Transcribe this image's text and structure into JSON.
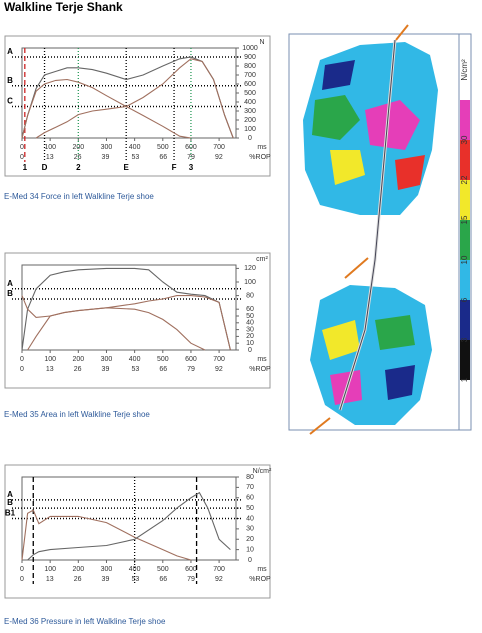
{
  "title": "Walkline Terje Shank",
  "chart_data": [
    {
      "type": "line",
      "title": "E-Med 34 Force in left Walkline Terje shoe",
      "y_unit": "N",
      "x_unit": "ms",
      "x2_unit": "%ROP",
      "xlim": [
        0,
        760
      ],
      "xticks": [
        0,
        100,
        200,
        300,
        400,
        500,
        600,
        700
      ],
      "x2lim": [
        0,
        100
      ],
      "x2ticks": [
        0,
        13,
        26,
        39,
        53,
        66,
        79,
        92
      ],
      "ylim": [
        0,
        1000
      ],
      "yticks": [
        0,
        100,
        200,
        300,
        400,
        500,
        600,
        700,
        800,
        900,
        1000
      ],
      "x": [
        0,
        20,
        50,
        80,
        120,
        160,
        200,
        250,
        300,
        370,
        430,
        500,
        560,
        600,
        640,
        680,
        720,
        750
      ],
      "series": [
        {
          "color": "#666666",
          "values": [
            0,
            250,
            550,
            700,
            740,
            780,
            780,
            760,
            720,
            650,
            700,
            800,
            880,
            900,
            850,
            650,
            250,
            0
          ]
        },
        {
          "color": "#a0705f",
          "values": [
            0,
            250,
            520,
            600,
            640,
            650,
            620,
            560,
            470,
            350,
            250,
            130,
            20,
            0,
            null,
            null,
            null,
            null
          ]
        },
        {
          "color": "#a0705f",
          "values": [
            null,
            null,
            0,
            60,
            120,
            180,
            260,
            300,
            320,
            350,
            450,
            600,
            780,
            880,
            850,
            650,
            250,
            0
          ]
        }
      ],
      "hlines": [
        {
          "label": "A",
          "value": 900
        },
        {
          "label": "B",
          "value": 580
        },
        {
          "label": "C",
          "value": 350
        }
      ],
      "vlines": [
        {
          "label": "1",
          "value": 10,
          "color": "#cc2222",
          "style": "dashed"
        },
        {
          "label": "D",
          "value": 80,
          "color": "#000000",
          "style": "dotted"
        },
        {
          "label": "2",
          "value": 200,
          "color": "#2a9a5a",
          "style": "dotted"
        },
        {
          "label": "E",
          "value": 370,
          "color": "#000000",
          "style": "dotted"
        },
        {
          "label": "F",
          "value": 540,
          "color": "#000000",
          "style": "dotted"
        },
        {
          "label": "3",
          "value": 600,
          "color": "#2a9a5a",
          "style": "dotted"
        }
      ]
    },
    {
      "type": "line",
      "title": "E-Med 35 Area in left Walkline Terje shoe",
      "y_unit": "cm²",
      "x_unit": "ms",
      "x2_unit": "%ROP",
      "xlim": [
        0,
        760
      ],
      "xticks": [
        0,
        100,
        200,
        300,
        400,
        500,
        600,
        700
      ],
      "x2lim": [
        0,
        100
      ],
      "x2ticks": [
        0,
        13,
        26,
        39,
        53,
        66,
        79,
        92
      ],
      "ylim": [
        0,
        125
      ],
      "yticks": [
        0,
        10,
        20,
        30,
        40,
        50,
        60,
        80,
        100,
        120
      ],
      "x": [
        0,
        20,
        50,
        100,
        150,
        200,
        300,
        400,
        450,
        500,
        550,
        600,
        650,
        700,
        740
      ],
      "series": [
        {
          "color": "#666666",
          "values": [
            0,
            60,
            90,
            110,
            115,
            118,
            120,
            120,
            118,
            100,
            85,
            82,
            80,
            70,
            0
          ]
        },
        {
          "color": "#a0705f",
          "values": [
            80,
            60,
            48,
            50,
            55,
            58,
            62,
            60,
            55,
            45,
            30,
            10,
            0,
            null,
            null
          ]
        },
        {
          "color": "#a0705f",
          "values": [
            null,
            0,
            20,
            50,
            55,
            58,
            62,
            68,
            72,
            75,
            80,
            80,
            78,
            70,
            0
          ]
        }
      ],
      "hlines": [
        {
          "label": "A",
          "value": 90
        },
        {
          "label": "B",
          "value": 75
        }
      ],
      "vlines": []
    },
    {
      "type": "line",
      "title": "E-Med 36 Pressure in left Walkline Terje shoe",
      "y_unit": "N/cm²",
      "x_unit": "ms",
      "x2_unit": "%ROP",
      "xlim": [
        0,
        760
      ],
      "xticks": [
        0,
        100,
        200,
        300,
        400,
        500,
        600,
        700
      ],
      "x2lim": [
        0,
        100
      ],
      "x2ticks": [
        0,
        13,
        26,
        39,
        53,
        66,
        79,
        92
      ],
      "ylim": [
        0,
        80
      ],
      "yticks": [
        0,
        10,
        20,
        30,
        40,
        50,
        60,
        70,
        80
      ],
      "x": [
        0,
        20,
        40,
        60,
        100,
        200,
        300,
        400,
        500,
        550,
        600,
        630,
        660,
        700,
        740
      ],
      "series": [
        {
          "color": "#a0705f",
          "values": [
            0,
            45,
            48,
            35,
            42,
            42,
            36,
            22,
            10,
            4,
            0,
            null,
            null,
            null,
            null
          ]
        },
        {
          "color": "#666666",
          "values": [
            null,
            0,
            5,
            8,
            10,
            12,
            14,
            20,
            38,
            50,
            60,
            65,
            50,
            20,
            10
          ]
        }
      ],
      "hlines": [
        {
          "label": "A",
          "value": 58
        },
        {
          "label": "B",
          "value": 50
        },
        {
          "label": "B1",
          "value": 40
        }
      ],
      "vlines": [
        {
          "value": 40,
          "color": "#000000",
          "style": "dashed"
        },
        {
          "value": 400,
          "color": "#000000",
          "style": "dotted"
        },
        {
          "value": 620,
          "color": "#000000",
          "style": "dashed"
        }
      ]
    }
  ],
  "pressure_map": {
    "unit": "N/cm²",
    "scale_labels": [
      "30",
      "22",
      "15",
      "10",
      "6",
      "3",
      "1"
    ]
  }
}
